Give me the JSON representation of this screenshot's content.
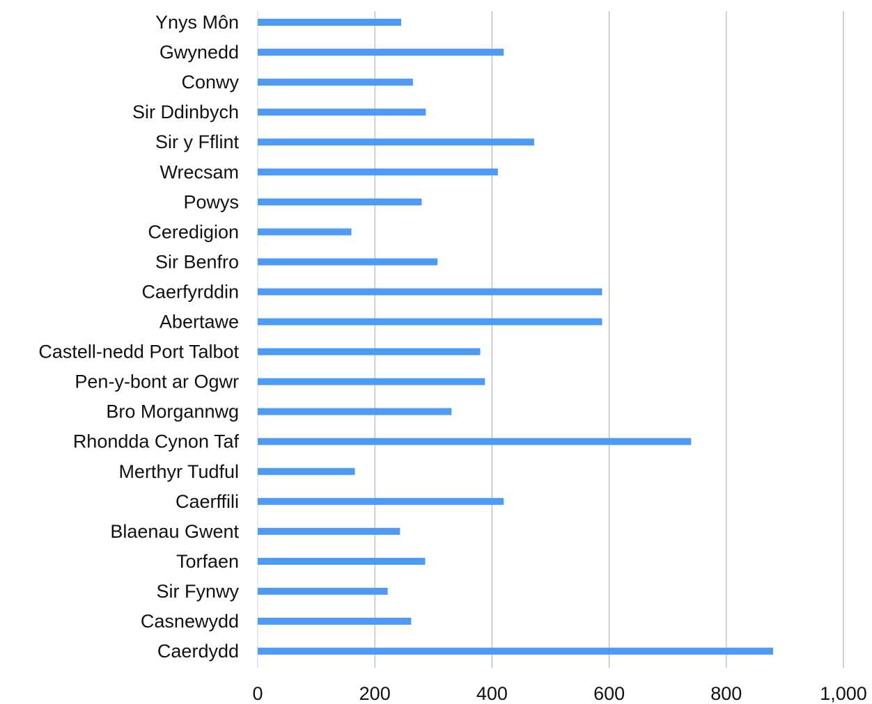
{
  "chart_data": {
    "type": "bar",
    "orientation": "horizontal",
    "categories": [
      "Ynys Môn",
      "Gwynedd",
      "Conwy",
      "Sir Ddinbych",
      "Sir y Fflint",
      "Wrecsam",
      "Powys",
      "Ceredigion",
      "Sir Benfro",
      "Caerfyrddin",
      "Abertawe",
      "Castell-nedd Port Talbot",
      "Pen-y-bont ar Ogwr",
      "Bro Morgannwg",
      "Rhondda Cynon Taf",
      "Merthyr Tudful",
      "Caerffili",
      "Blaenau Gwent",
      "Torfaen",
      "Sir Fynwy",
      "Casnewydd",
      "Caerdydd"
    ],
    "values": [
      245,
      420,
      265,
      287,
      472,
      410,
      280,
      160,
      307,
      588,
      588,
      380,
      388,
      331,
      740,
      166,
      420,
      243,
      286,
      222,
      262,
      880
    ],
    "xlim": [
      0,
      1000
    ],
    "ticks": [
      0,
      200,
      400,
      600,
      800,
      1000
    ],
    "tick_labels": [
      "0",
      "200",
      "400",
      "600",
      "800",
      "1,000"
    ],
    "grid": true,
    "bar_color": "#4e9bf5",
    "grid_color": "#b7b7b7",
    "title": "",
    "xlabel": "",
    "ylabel": ""
  }
}
